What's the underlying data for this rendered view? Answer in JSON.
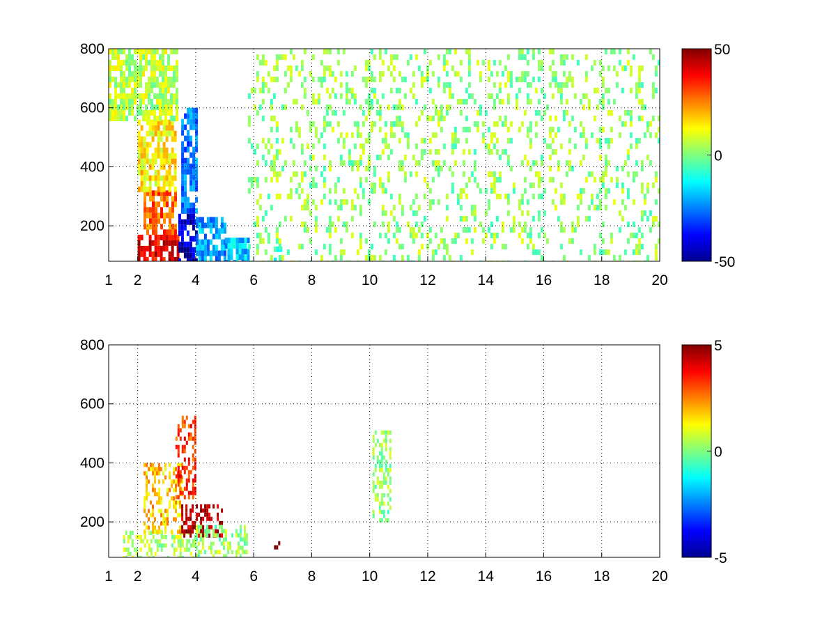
{
  "chart_data": [
    {
      "type": "heatmap",
      "title": "",
      "xlabel": "",
      "ylabel": "",
      "xlim": [
        1,
        20
      ],
      "ylim": [
        80,
        800
      ],
      "xticks": [
        "1",
        "2",
        "4",
        "6",
        "8",
        "10",
        "12",
        "14",
        "16",
        "18",
        "20"
      ],
      "yticks": [
        "200",
        "400",
        "600",
        "800"
      ],
      "grid": true,
      "colormap": "jet",
      "colorbar": {
        "min": -50,
        "max": 50,
        "ticks": [
          "50",
          "0",
          "-50"
        ]
      },
      "regions": [
        {
          "x": [
            2.0,
            3.4
          ],
          "y": [
            80,
            170
          ],
          "value": 40
        },
        {
          "x": [
            2.2,
            3.3
          ],
          "y": [
            170,
            320
          ],
          "value": 28
        },
        {
          "x": [
            2.0,
            3.3
          ],
          "y": [
            320,
            560
          ],
          "value": 14
        },
        {
          "x": [
            1.0,
            3.4
          ],
          "y": [
            560,
            800
          ],
          "value": 6
        },
        {
          "x": [
            3.4,
            4.0
          ],
          "y": [
            80,
            260
          ],
          "value": -42
        },
        {
          "x": [
            3.5,
            4.0
          ],
          "y": [
            260,
            600
          ],
          "value": -26
        },
        {
          "x": [
            4.0,
            5.0
          ],
          "y": [
            80,
            230
          ],
          "value": -22
        },
        {
          "x": [
            5.0,
            5.8
          ],
          "y": [
            80,
            160
          ],
          "value": -18
        },
        {
          "x": [
            6.6,
            7.0
          ],
          "y": [
            80,
            130
          ],
          "value": -12
        },
        {
          "x": [
            5.8,
            20.0
          ],
          "y": [
            80,
            800
          ],
          "value": 2
        }
      ]
    },
    {
      "type": "heatmap",
      "title": "",
      "xlabel": "",
      "ylabel": "",
      "xlim": [
        1,
        20
      ],
      "ylim": [
        80,
        800
      ],
      "xticks": [
        "1",
        "2",
        "4",
        "6",
        "8",
        "10",
        "12",
        "14",
        "16",
        "18",
        "20"
      ],
      "yticks": [
        "200",
        "400",
        "600",
        "800"
      ],
      "grid": true,
      "colormap": "jet",
      "colorbar": {
        "min": -5,
        "max": 5,
        "ticks": [
          "5",
          "0",
          "-5"
        ]
      },
      "regions": [
        {
          "x": [
            1.5,
            4.0
          ],
          "y": [
            80,
            170
          ],
          "value": 0.5
        },
        {
          "x": [
            2.2,
            3.5
          ],
          "y": [
            170,
            400
          ],
          "value": 1.8
        },
        {
          "x": [
            3.3,
            4.0
          ],
          "y": [
            280,
            560
          ],
          "value": 3.2
        },
        {
          "x": [
            3.5,
            4.9
          ],
          "y": [
            150,
            260
          ],
          "value": 4.5
        },
        {
          "x": [
            4.0,
            5.8
          ],
          "y": [
            80,
            190
          ],
          "value": 0.3
        },
        {
          "x": [
            6.7,
            7.0
          ],
          "y": [
            110,
            135
          ],
          "value": 4.8
        },
        {
          "x": [
            10.1,
            10.7
          ],
          "y": [
            200,
            510
          ],
          "value": 0.2
        }
      ]
    }
  ]
}
